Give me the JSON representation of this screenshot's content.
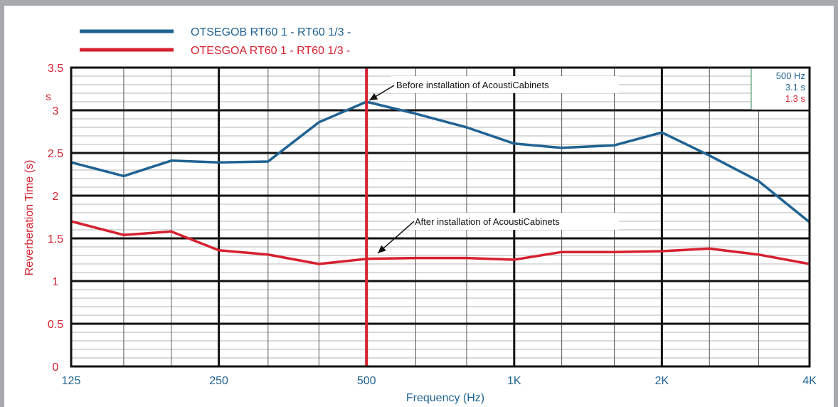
{
  "chart_data": {
    "type": "line",
    "xlabel": "Frequency (Hz)",
    "ylabel": "Reverberation Time (s)",
    "y_unit_label": "s",
    "x_tick_labels": [
      "125",
      "250",
      "500",
      "1K",
      "2K",
      "4K"
    ],
    "y_tick_labels": [
      "0",
      "0.5",
      "1",
      "1.5",
      "2",
      "2.5",
      "3",
      "3.5"
    ],
    "ylim": [
      0,
      3.5
    ],
    "x_scale": "log (1/3-octave)",
    "x": [
      125,
      160,
      200,
      250,
      315,
      400,
      500,
      630,
      800,
      1000,
      1250,
      1600,
      2000,
      2500,
      3150,
      4000
    ],
    "series": [
      {
        "name": "OTSEGOB RT60 1 - RT60 1/3 -",
        "color": "#1f6393",
        "values": [
          2.39,
          2.23,
          2.41,
          2.39,
          2.4,
          2.86,
          3.1,
          2.96,
          2.8,
          2.61,
          2.56,
          2.59,
          2.74,
          2.47,
          2.17,
          1.69
        ]
      },
      {
        "name": "OTESGOA RT60 1 - RT60 1/3 -",
        "color": "#d6202f",
        "values": [
          1.7,
          1.54,
          1.58,
          1.36,
          1.31,
          1.2,
          1.26,
          1.27,
          1.27,
          1.25,
          1.34,
          1.34,
          1.35,
          1.38,
          1.31,
          1.2
        ]
      }
    ],
    "cursor": {
      "x": 500,
      "color": "#d6202f"
    },
    "annotations": [
      {
        "text": "Before installation of AcoustiCabinets",
        "x": 500,
        "y": 3.1
      },
      {
        "text": "After installation of AcoustiCabinets",
        "x": 500,
        "y": 1.26
      }
    ],
    "readout": {
      "freq": "500 Hz",
      "blue_value": "3.1 s",
      "red_value": "1.3 s"
    },
    "grid": true
  }
}
